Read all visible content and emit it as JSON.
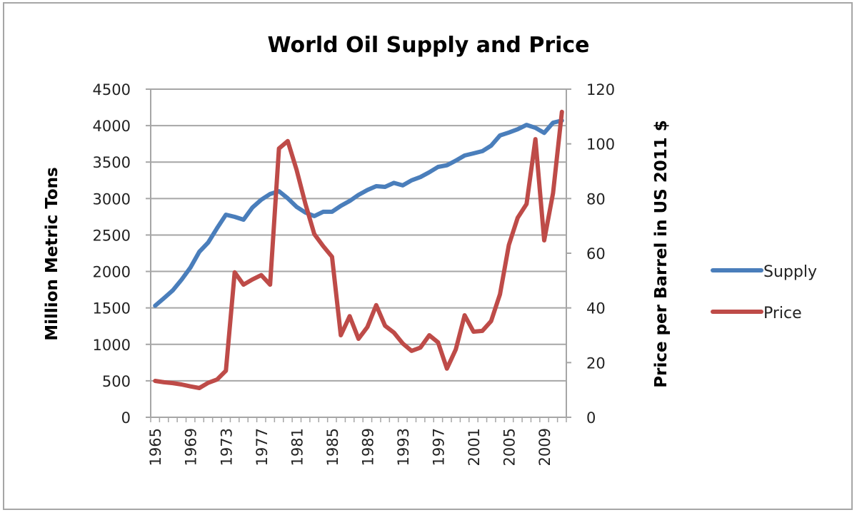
{
  "chart_data": {
    "type": "line",
    "title": "World Oil Supply and Price",
    "xlabel": "",
    "ylabel": "Million Metric Tons",
    "y2label": "Price per Barrel in US 2011 $",
    "ylim": [
      0,
      4500
    ],
    "y2lim": [
      0,
      120
    ],
    "yticks": [
      "0",
      "500",
      "1000",
      "1500",
      "2000",
      "2500",
      "3000",
      "3500",
      "4000",
      "4500"
    ],
    "y2ticks": [
      "0",
      "20",
      "40",
      "60",
      "80",
      "100",
      "120"
    ],
    "xtick_labels": [
      "1965",
      "1969",
      "1973",
      "1977",
      "1981",
      "1985",
      "1989",
      "1993",
      "1997",
      "2001",
      "2005",
      "2009"
    ],
    "grid": true,
    "legend_position": "right",
    "x": [
      1965,
      1966,
      1967,
      1968,
      1969,
      1970,
      1971,
      1972,
      1973,
      1974,
      1975,
      1976,
      1977,
      1978,
      1979,
      1980,
      1981,
      1982,
      1983,
      1984,
      1985,
      1986,
      1987,
      1988,
      1989,
      1990,
      1991,
      1992,
      1993,
      1994,
      1995,
      1996,
      1997,
      1998,
      1999,
      2000,
      2001,
      2002,
      2003,
      2004,
      2005,
      2006,
      2007,
      2008,
      2009,
      2010,
      2011
    ],
    "series": [
      {
        "name": "Supply",
        "axis": "left",
        "color": "#4a7ebb",
        "values": [
          1530,
          1634,
          1741,
          1888,
          2054,
          2270,
          2397,
          2593,
          2778,
          2749,
          2710,
          2876,
          2984,
          3062,
          3100,
          3003,
          2886,
          2808,
          2760,
          2818,
          2818,
          2900,
          2966,
          3050,
          3117,
          3170,
          3160,
          3215,
          3180,
          3250,
          3295,
          3360,
          3434,
          3456,
          3520,
          3590,
          3620,
          3650,
          3725,
          3865,
          3905,
          3950,
          4010,
          3970,
          3900,
          4040,
          4070
        ]
      },
      {
        "name": "Price",
        "axis": "right",
        "color": "#be4b48",
        "values": [
          13.3,
          12.8,
          12.5,
          12.0,
          11.3,
          10.7,
          12.6,
          13.8,
          17.0,
          53.0,
          48.5,
          50.4,
          52.0,
          48.5,
          98.3,
          101.0,
          90.5,
          78.0,
          67.0,
          62.6,
          58.7,
          30.0,
          37.0,
          28.7,
          33.0,
          41.0,
          33.5,
          31.0,
          27.0,
          24.3,
          25.5,
          30.0,
          27.4,
          17.8,
          24.8,
          37.3,
          31.3,
          31.6,
          35.2,
          45.0,
          63.0,
          73.0,
          78.0,
          101.7,
          64.7,
          82.0,
          111.7
        ]
      }
    ]
  }
}
